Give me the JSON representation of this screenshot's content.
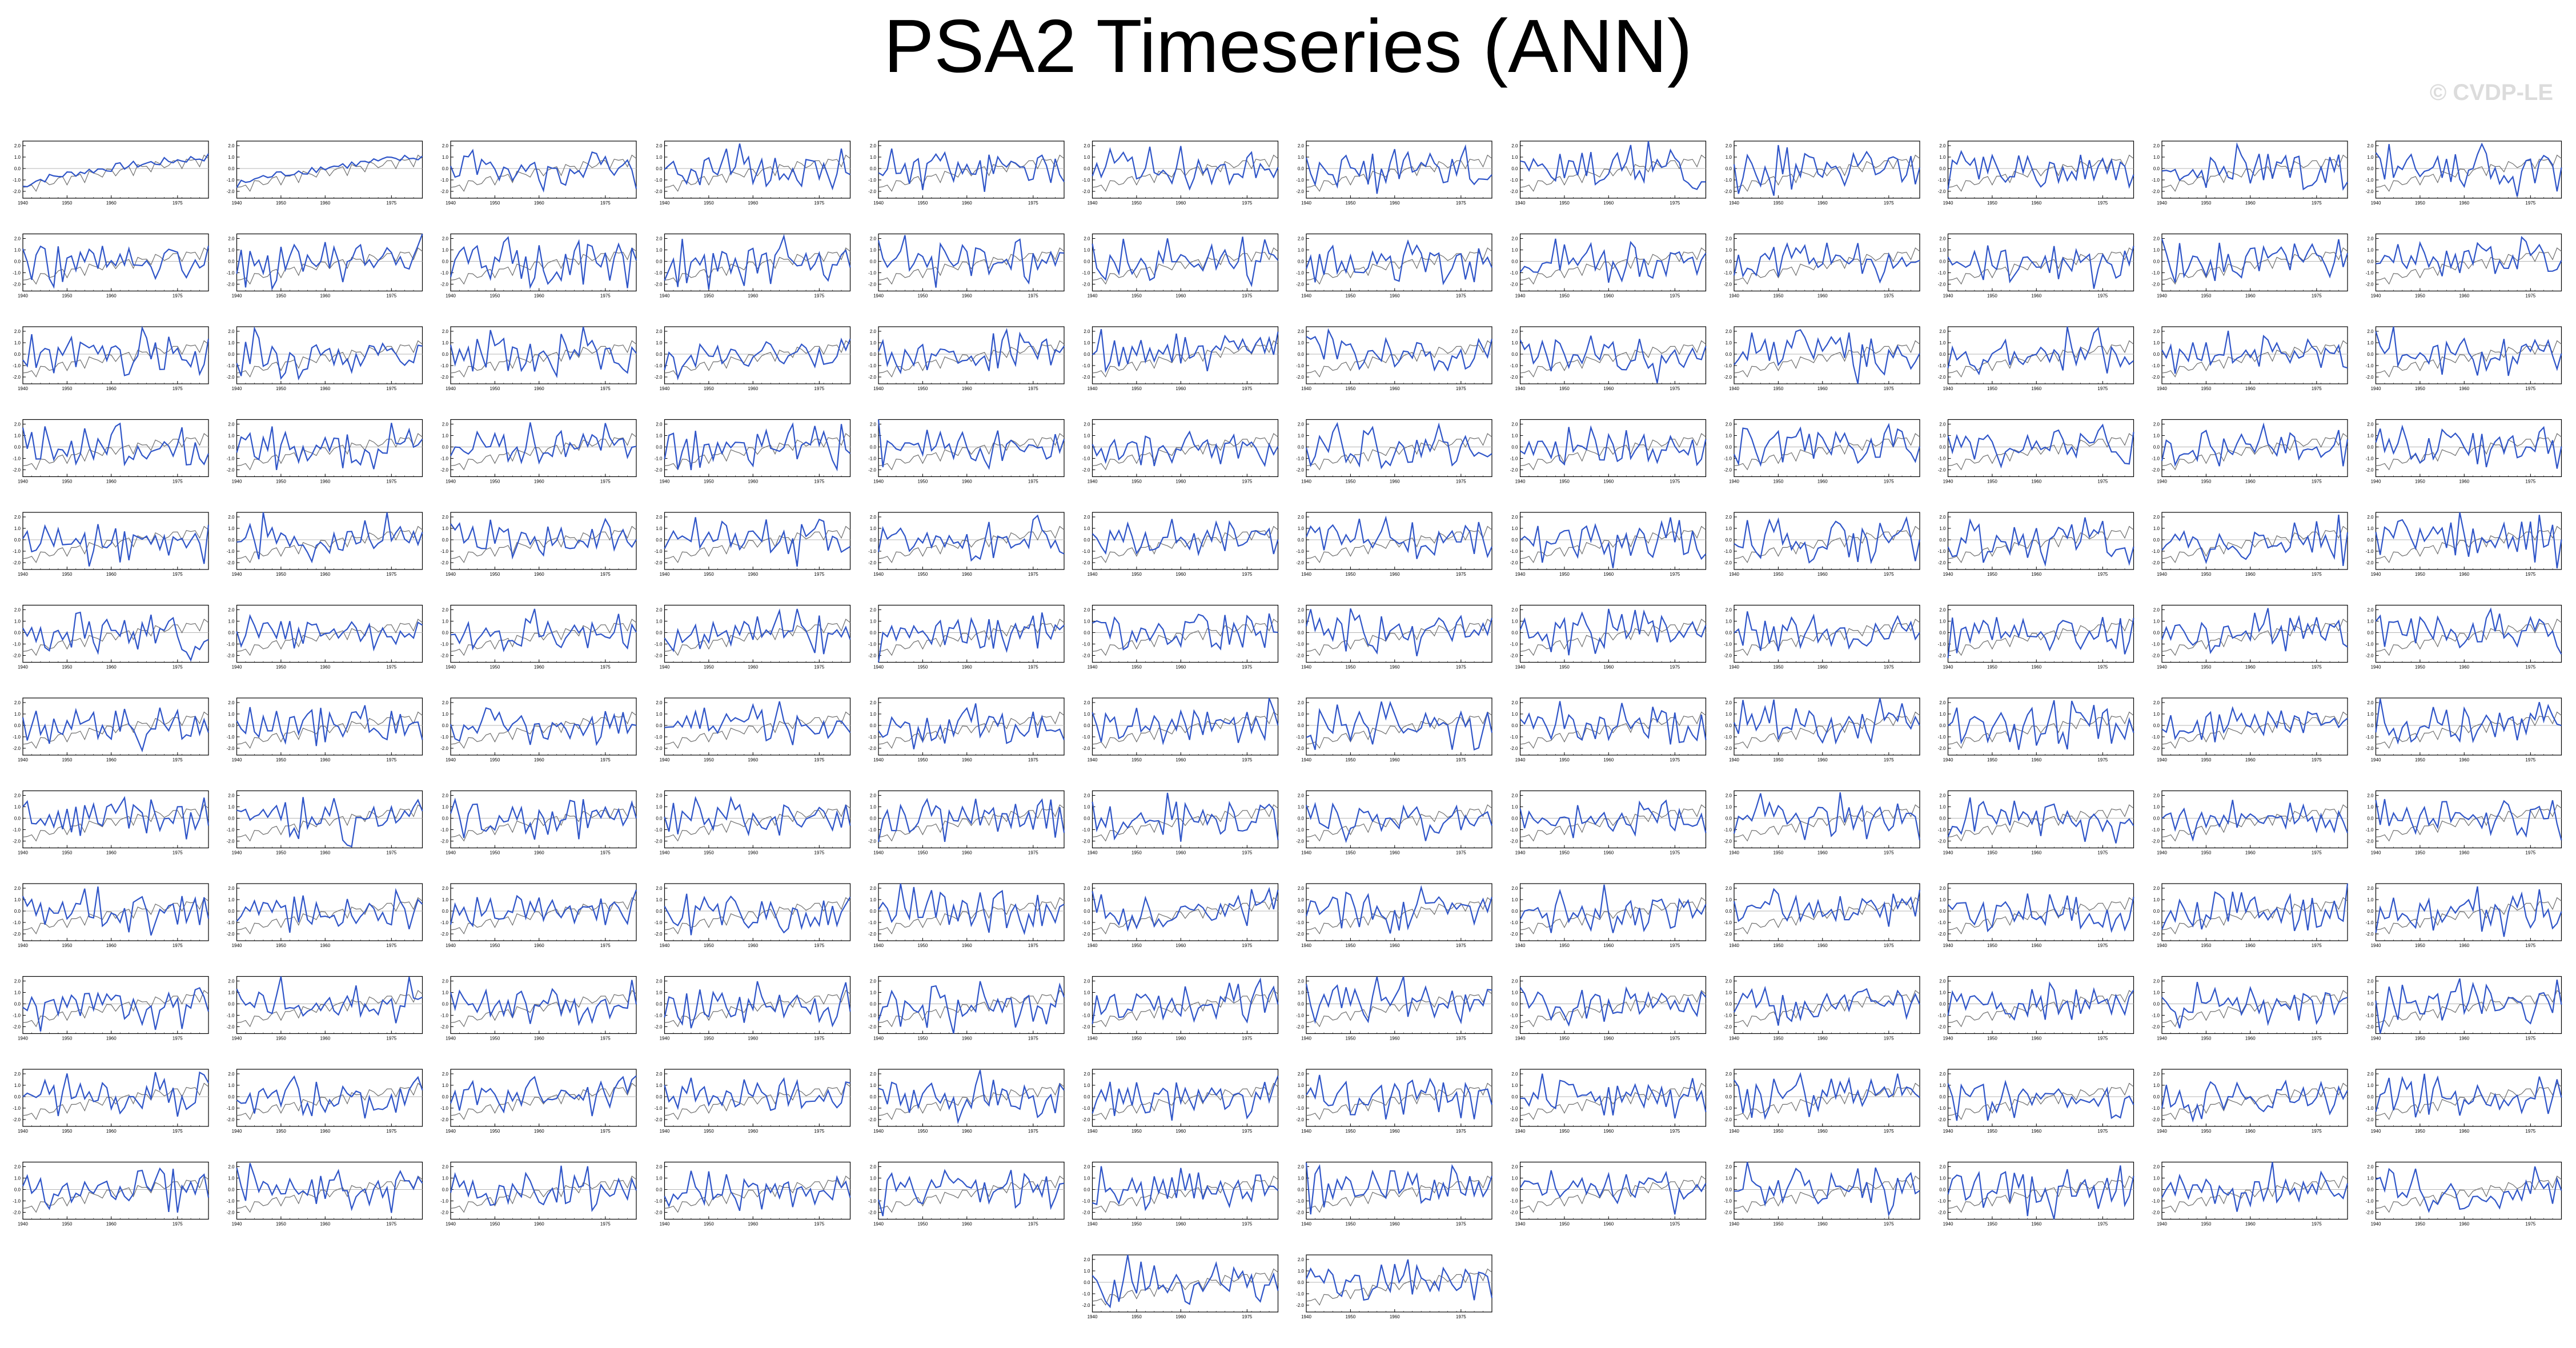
{
  "figure_title": "PSA2 Timeseries (ANN)",
  "watermark": "© CVDP-LE",
  "chart_data": {
    "type": "line",
    "x_ticks": [
      "1940",
      "1950",
      "1960",
      "1975"
    ],
    "y_ticks": [
      "2.0",
      "1.0",
      "0.0",
      "-1.0",
      "-2.0"
    ],
    "xlim": [
      1940,
      1982
    ],
    "ylim": [
      -2.6,
      2.4
    ],
    "grid": false,
    "panel_rows": 12,
    "panel_cols": 12,
    "extra_panels": 2,
    "reference_color": "#6e6e6e",
    "series_color": "#2f55c8",
    "zero_line_color": "#b4b4b4",
    "panel_titles": [],
    "panel_trends": []
  }
}
